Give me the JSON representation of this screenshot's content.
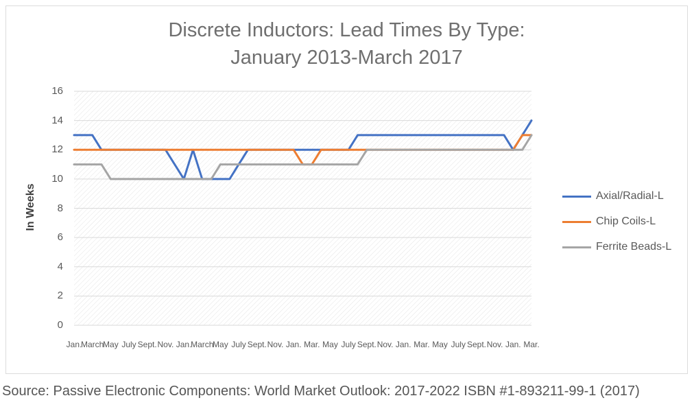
{
  "title": {
    "line1": "Discrete Inductors: Lead Times By Type:",
    "line2": "January 2013-March 2017"
  },
  "source": "Source: Passive Electronic Components: World Market Outlook: 2017-2022 ISBN #1-893211-99-1 (2017)",
  "colors": {
    "axial_radial": "#4472C4",
    "chip_coils": "#ED7D31",
    "ferrite_beads": "#A5A5A5",
    "gridline": "#D9D9D9",
    "hatch": "#E4E4E4",
    "text_gray": "#595959"
  },
  "chart_data": {
    "type": "line",
    "title": "Discrete Inductors: Lead Times By Type: January 2013-March 2017",
    "xlabel": "",
    "ylabel": "In Weeks",
    "ylim": [
      0,
      16
    ],
    "y_ticks": [
      0,
      2,
      4,
      6,
      8,
      10,
      12,
      14,
      16
    ],
    "grid": true,
    "plot_background": "diagonal-hatch",
    "legend_position": "right",
    "x_points": 51,
    "x_label_every": 2,
    "x_tick_labels": [
      "Jan.",
      "March",
      "May",
      "July",
      "Sept.",
      "Nov.",
      "Jan.",
      "March",
      "May",
      "July",
      "Sept.",
      "Nov.",
      "Jan.",
      "Mar.",
      "May",
      "July",
      "Sept.",
      "Nov.",
      "Jan.",
      "Mar.",
      "May",
      "July",
      "Sept.",
      "Nov.",
      "Jan.",
      "Mar."
    ],
    "x_range_note": "monthly points January 2013 through March 2017",
    "series": [
      {
        "name": "Axial/Radial-L",
        "color": "#4472C4",
        "values": [
          13,
          13,
          13,
          12,
          12,
          12,
          12,
          12,
          12,
          12,
          12,
          11,
          10,
          12,
          10,
          10,
          10,
          10,
          11,
          12,
          12,
          12,
          12,
          12,
          12,
          12,
          12,
          12,
          12,
          12,
          12,
          13,
          13,
          13,
          13,
          13,
          13,
          13,
          13,
          13,
          13,
          13,
          13,
          13,
          13,
          13,
          13,
          13,
          12,
          13,
          14
        ]
      },
      {
        "name": "Chip Coils-L",
        "color": "#ED7D31",
        "values": [
          12,
          12,
          12,
          12,
          12,
          12,
          12,
          12,
          12,
          12,
          12,
          12,
          12,
          12,
          12,
          12,
          12,
          12,
          12,
          12,
          12,
          12,
          12,
          12,
          12,
          11,
          11,
          12,
          12,
          12,
          12,
          12,
          12,
          12,
          12,
          12,
          12,
          12,
          12,
          12,
          12,
          12,
          12,
          12,
          12,
          12,
          12,
          12,
          12,
          13,
          13
        ]
      },
      {
        "name": "Ferrite Beads-L",
        "color": "#A5A5A5",
        "values": [
          11,
          11,
          11,
          11,
          10,
          10,
          10,
          10,
          10,
          10,
          10,
          10,
          10,
          10,
          10,
          10,
          11,
          11,
          11,
          11,
          11,
          11,
          11,
          11,
          11,
          11,
          11,
          11,
          11,
          11,
          11,
          11,
          12,
          12,
          12,
          12,
          12,
          12,
          12,
          12,
          12,
          12,
          12,
          12,
          12,
          12,
          12,
          12,
          12,
          12,
          13
        ]
      }
    ]
  }
}
